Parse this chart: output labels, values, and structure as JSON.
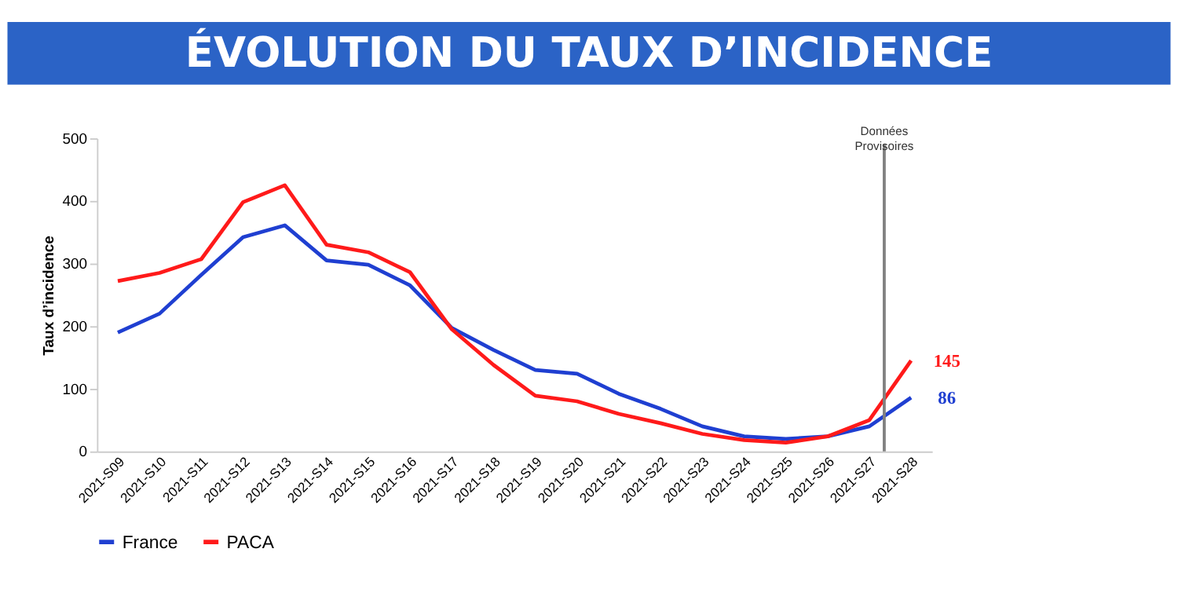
{
  "chart_data": {
    "type": "line",
    "title": "ÉVOLUTION DU TAUX D’INCIDENCE",
    "ylabel": "Taux d’incidence",
    "categories": [
      "2021-S09",
      "2021-S10",
      "2021-S11",
      "2021-S12",
      "2021-S13",
      "2021-S14",
      "2021-S15",
      "2021-S16",
      "2021-S17",
      "2021-S18",
      "2021-S19",
      "2021-S20",
      "2021-S21",
      "2021-S22",
      "2021-S23",
      "2021-S24",
      "2021-S25",
      "2021-S26",
      "2021-S27",
      "2021-S28"
    ],
    "series": [
      {
        "name": "France",
        "color": "#1f3fd1",
        "values": [
          190,
          220,
          282,
          342,
          361,
          305,
          298,
          265,
          197,
          162,
          130,
          124,
          92,
          68,
          40,
          24,
          20,
          24,
          40,
          86
        ],
        "value_labels": [
          null,
          null,
          null,
          null,
          null,
          null,
          null,
          null,
          null,
          null,
          null,
          null,
          null,
          null,
          null,
          null,
          null,
          null,
          null,
          "86"
        ]
      },
      {
        "name": "PACA",
        "color": "#ff1a1a",
        "values": [
          272,
          285,
          307,
          398,
          425,
          330,
          318,
          286,
          195,
          138,
          89,
          80,
          60,
          45,
          28,
          18,
          14,
          24,
          50,
          145
        ],
        "value_labels": [
          null,
          null,
          null,
          null,
          null,
          null,
          null,
          null,
          null,
          null,
          null,
          null,
          null,
          null,
          null,
          null,
          null,
          null,
          null,
          "145"
        ]
      }
    ],
    "ylim": [
      0,
      500
    ],
    "yticks": [
      0,
      100,
      200,
      300,
      400,
      500
    ],
    "grid": false,
    "legend": "bottom",
    "ref_lines": [
      {
        "axis": "x",
        "value": "2021-S27",
        "label": "Données Provisoires",
        "color": "#808080"
      }
    ]
  }
}
